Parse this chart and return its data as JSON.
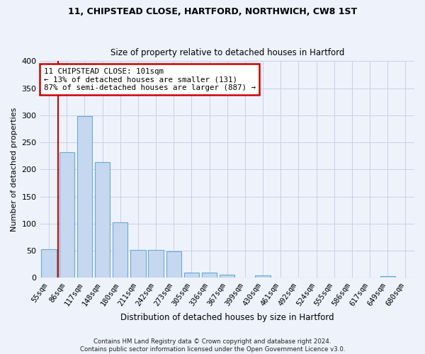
{
  "title1": "11, CHIPSTEAD CLOSE, HARTFORD, NORTHWICH, CW8 1ST",
  "title2": "Size of property relative to detached houses in Hartford",
  "xlabel": "Distribution of detached houses by size in Hartford",
  "ylabel": "Number of detached properties",
  "categories": [
    "55sqm",
    "86sqm",
    "117sqm",
    "148sqm",
    "180sqm",
    "211sqm",
    "242sqm",
    "273sqm",
    "305sqm",
    "336sqm",
    "367sqm",
    "399sqm",
    "430sqm",
    "461sqm",
    "492sqm",
    "524sqm",
    "555sqm",
    "586sqm",
    "617sqm",
    "649sqm",
    "680sqm"
  ],
  "values": [
    53,
    232,
    298,
    214,
    103,
    52,
    52,
    49,
    10,
    10,
    6,
    0,
    4,
    0,
    0,
    0,
    0,
    0,
    0,
    3,
    0
  ],
  "bar_color": "#c5d8f0",
  "bar_edge_color": "#6aaad4",
  "annotation_text_line1": "11 CHIPSTEAD CLOSE: 101sqm",
  "annotation_text_line2": "← 13% of detached houses are smaller (131)",
  "annotation_text_line3": "87% of semi-detached houses are larger (887) →",
  "annotation_box_facecolor": "#ffffff",
  "annotation_box_edgecolor": "#cc0000",
  "vline_color": "#cc0000",
  "vline_x": 0.5,
  "ylim": [
    0,
    400
  ],
  "yticks": [
    0,
    50,
    100,
    150,
    200,
    250,
    300,
    350,
    400
  ],
  "footnote": "Contains HM Land Registry data © Crown copyright and database right 2024.\nContains public sector information licensed under the Open Government Licence v3.0.",
  "bg_color": "#eef2fb",
  "grid_color": "#c8d0e8"
}
